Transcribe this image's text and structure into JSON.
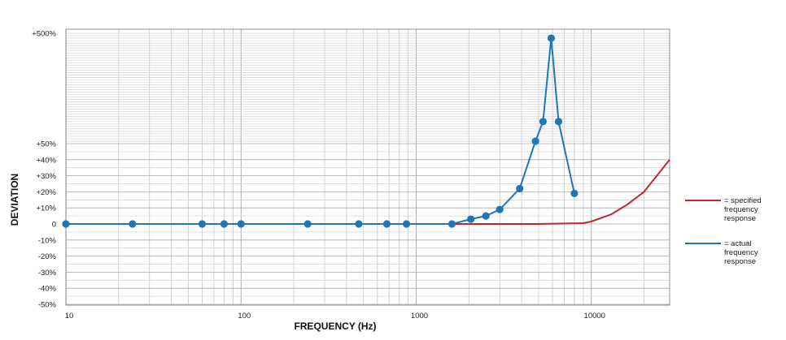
{
  "chart_data": {
    "type": "line",
    "xlabel": "FREQUENCY (Hz)",
    "ylabel": "DEVIATION",
    "x_scale": "log",
    "xlim": [
      10,
      28000
    ],
    "x_ticks": [
      {
        "value": 10,
        "label": "10"
      },
      {
        "value": 100,
        "label": "100"
      },
      {
        "value": 1000,
        "label": "1000"
      },
      {
        "value": 10000,
        "label": "10000"
      }
    ],
    "y_ticks": [
      {
        "value": -50,
        "label": "-50%"
      },
      {
        "value": -40,
        "label": "-40%"
      },
      {
        "value": -30,
        "label": "-30%"
      },
      {
        "value": -20,
        "label": "-20%"
      },
      {
        "value": -10,
        "label": "-10%"
      },
      {
        "value": 0,
        "label": "0"
      },
      {
        "value": 10,
        "label": "+10%"
      },
      {
        "value": 20,
        "label": "+20%"
      },
      {
        "value": 30,
        "label": "+30%"
      },
      {
        "value": 40,
        "label": "+40%"
      },
      {
        "value": 50,
        "label": "+50%"
      },
      {
        "value": 500,
        "label": "+500%"
      }
    ],
    "grid": true,
    "legend_position": "right",
    "series": [
      {
        "name": "= specified frequency response",
        "color": "#c0282d",
        "markers": false,
        "x": [
          10,
          1600,
          5000,
          9000,
          10000,
          13000,
          16000,
          20000,
          28000
        ],
        "y": [
          0,
          0,
          0,
          0.5,
          1.5,
          6,
          12,
          20,
          40
        ]
      },
      {
        "name": "= actual frequency response",
        "color": "#1f78b4",
        "markers": true,
        "x": [
          10,
          24,
          60,
          80,
          100,
          240,
          470,
          680,
          880,
          1600,
          2050,
          2500,
          3000,
          3900,
          4800,
          5300,
          5900,
          6500,
          8000
        ],
        "y": [
          0,
          0,
          0,
          0,
          0,
          0,
          0,
          0,
          0,
          0,
          3,
          5,
          9,
          22,
          60,
          140,
          480,
          140,
          19
        ]
      }
    ]
  },
  "legend": [
    {
      "label": "= specified\nfrequency\nresponse",
      "color": "#c0282d"
    },
    {
      "label": "= actual\nfrequency\nresponse",
      "color": "#1f78b4"
    }
  ]
}
